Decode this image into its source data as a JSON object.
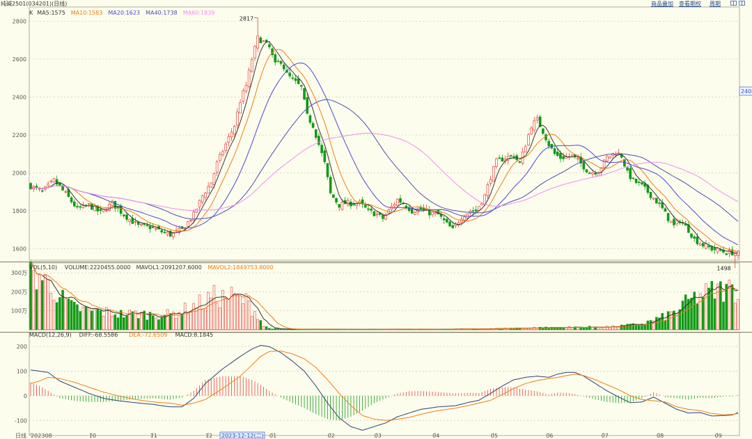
{
  "header": {
    "title": "纯碱2501(034201)(日线)",
    "buttons": [
      "商品叠加",
      "查看期权",
      "周期"
    ]
  },
  "colors": {
    "background": "#fdfdee",
    "up": "#e8413f",
    "down": "#129a16",
    "ma5": "#333333",
    "ma10": "#ee7d12",
    "ma20": "#4b47d6",
    "ma40": "#4a4fb0",
    "ma60": "#ef8cf2",
    "grid": "#cfcfb0",
    "axis": "#555555"
  },
  "price_legend": {
    "k": "K",
    "ma5": "MA5:1575",
    "ma10": "MA10:1583",
    "ma20": "MA20:1623",
    "ma40": "MA40:1738",
    "ma60": "MA60:1839"
  },
  "vol_legend": {
    "vol": "VOL(5,10)",
    "volume": "VOLUME:2220455.0000",
    "mavol1": "MAVOL1:2091207.6000",
    "mavol2": "MAVOL2:1849753.8000"
  },
  "macd_legend": {
    "macd": "MACD(12,26,9)",
    "diff": "DIFF:-68.5586",
    "dea": "DEA:-72.6509",
    "hist": "MACD:8.1845"
  },
  "right_label": "2400",
  "max_label": "2817",
  "min_label": "1498",
  "cursor_label": "2023-12-12(二)",
  "bottom_left_label": "日线",
  "chart_data": [
    {
      "type": "candlestick",
      "title": "纯碱2501(034201)(日线)",
      "ylim": [
        1540,
        2860
      ],
      "yticks": [
        1600,
        1800,
        2000,
        2200,
        2400,
        2600,
        2800
      ],
      "xticks": [
        "202308",
        "10",
        "11",
        "12",
        "01",
        "02",
        "03",
        "04",
        "05",
        "06",
        "07",
        "08",
        "09"
      ],
      "series_names": [
        "MA5",
        "MA10",
        "MA20",
        "MA40",
        "MA60"
      ],
      "anchors": {
        "price": [
          [
            0,
            1930
          ],
          [
            4,
            1900
          ],
          [
            8,
            1960
          ],
          [
            12,
            1890
          ],
          [
            16,
            1810
          ],
          [
            20,
            1830
          ],
          [
            24,
            1790
          ],
          [
            28,
            1840
          ],
          [
            32,
            1780
          ],
          [
            37,
            1720
          ],
          [
            41,
            1715
          ],
          [
            45,
            1690
          ],
          [
            48,
            1675
          ],
          [
            52,
            1700
          ],
          [
            56,
            1780
          ],
          [
            59,
            1880
          ],
          [
            62,
            1950
          ],
          [
            64,
            2050
          ],
          [
            67,
            2150
          ],
          [
            70,
            2250
          ],
          [
            72,
            2380
          ],
          [
            74,
            2460
          ],
          [
            76,
            2600
          ],
          [
            78,
            2710
          ],
          [
            80,
            2690
          ],
          [
            82,
            2660
          ],
          [
            84,
            2570
          ],
          [
            86,
            2590
          ],
          [
            88,
            2520
          ],
          [
            90,
            2490
          ],
          [
            93,
            2450
          ],
          [
            95,
            2300
          ],
          [
            97,
            2250
          ],
          [
            99,
            2150
          ],
          [
            101,
            2050
          ],
          [
            103,
            1890
          ],
          [
            106,
            1830
          ],
          [
            108,
            1840
          ],
          [
            111,
            1840
          ],
          [
            113,
            1840
          ],
          [
            116,
            1800
          ],
          [
            119,
            1780
          ],
          [
            121,
            1760
          ],
          [
            123,
            1800
          ],
          [
            126,
            1860
          ],
          [
            128,
            1840
          ],
          [
            131,
            1800
          ],
          [
            134,
            1810
          ],
          [
            137,
            1790
          ],
          [
            140,
            1780
          ],
          [
            143,
            1730
          ],
          [
            145,
            1700
          ],
          [
            148,
            1770
          ],
          [
            151,
            1800
          ],
          [
            153,
            1800
          ],
          [
            156,
            1880
          ],
          [
            158,
            1980
          ],
          [
            160,
            2060
          ],
          [
            163,
            2080
          ],
          [
            166,
            2090
          ],
          [
            168,
            2050
          ],
          [
            170,
            2150
          ],
          [
            172,
            2250
          ],
          [
            174,
            2280
          ],
          [
            176,
            2220
          ],
          [
            178,
            2150
          ],
          [
            180,
            2100
          ],
          [
            182,
            2080
          ],
          [
            186,
            2090
          ],
          [
            189,
            2050
          ],
          [
            192,
            2000
          ],
          [
            195,
            2010
          ],
          [
            198,
            2080
          ],
          [
            201,
            2110
          ],
          [
            203,
            2090
          ],
          [
            205,
            2000
          ],
          [
            207,
            1960
          ],
          [
            210,
            1930
          ],
          [
            212,
            1900
          ],
          [
            215,
            1850
          ],
          [
            217,
            1810
          ],
          [
            219,
            1760
          ],
          [
            221,
            1720
          ],
          [
            223,
            1750
          ],
          [
            226,
            1700
          ],
          [
            228,
            1650
          ],
          [
            231,
            1620
          ],
          [
            234,
            1600
          ],
          [
            237,
            1590
          ],
          [
            239,
            1580
          ],
          [
            241,
            1580
          ],
          [
            243,
            1575
          ]
        ]
      },
      "annotations": {
        "high": 2817,
        "low": 1498
      }
    },
    {
      "type": "bar",
      "title": "VOL(5,10)",
      "ylim": [
        0,
        330
      ],
      "yticks": [
        100,
        200,
        300
      ],
      "ytick_labels": [
        "100万",
        "200万",
        "300万"
      ],
      "series_names": [
        "VOLUME",
        "MAVOL1",
        "MAVOL2"
      ],
      "anchors": {
        "vol": [
          [
            0,
            290
          ],
          [
            3,
            290
          ],
          [
            5,
            250
          ],
          [
            8,
            220
          ],
          [
            11,
            160
          ],
          [
            14,
            120
          ],
          [
            17,
            110
          ],
          [
            20,
            100
          ],
          [
            24,
            95
          ],
          [
            28,
            90
          ],
          [
            32,
            80
          ],
          [
            36,
            85
          ],
          [
            40,
            80
          ],
          [
            44,
            80
          ],
          [
            48,
            80
          ],
          [
            52,
            100
          ],
          [
            55,
            120
          ],
          [
            58,
            140
          ],
          [
            60,
            140
          ],
          [
            62,
            180
          ],
          [
            64,
            170
          ],
          [
            66,
            170
          ],
          [
            68,
            180
          ],
          [
            70,
            170
          ],
          [
            72,
            160
          ],
          [
            74,
            150
          ],
          [
            76,
            110
          ],
          [
            78,
            80
          ],
          [
            80,
            20
          ],
          [
            82,
            8
          ],
          [
            84,
            5
          ],
          [
            86,
            3
          ],
          [
            140,
            3
          ],
          [
            160,
            6
          ],
          [
            170,
            10
          ],
          [
            180,
            12
          ],
          [
            190,
            14
          ],
          [
            200,
            16
          ],
          [
            210,
            30
          ],
          [
            214,
            50
          ],
          [
            218,
            70
          ],
          [
            222,
            100
          ],
          [
            226,
            150
          ],
          [
            230,
            180
          ],
          [
            234,
            200
          ],
          [
            238,
            210
          ],
          [
            243,
            215
          ]
        ]
      }
    },
    {
      "type": "line",
      "title": "MACD(12,26,9)",
      "ylim": [
        -150,
        240
      ],
      "yticks": [
        -100,
        0,
        100,
        200
      ],
      "series_names": [
        "DIFF",
        "DEA",
        "MACD"
      ],
      "anchors": {
        "diff": [
          [
            0,
            105
          ],
          [
            3,
            100
          ],
          [
            6,
            95
          ],
          [
            10,
            60
          ],
          [
            15,
            35
          ],
          [
            20,
            10
          ],
          [
            25,
            -10
          ],
          [
            30,
            -20
          ],
          [
            36,
            -28
          ],
          [
            42,
            -35
          ],
          [
            48,
            -45
          ],
          [
            52,
            -45
          ],
          [
            56,
            -10
          ],
          [
            60,
            50
          ],
          [
            66,
            110
          ],
          [
            72,
            160
          ],
          [
            76,
            190
          ],
          [
            79,
            205
          ],
          [
            82,
            200
          ],
          [
            86,
            175
          ],
          [
            90,
            140
          ],
          [
            94,
            100
          ],
          [
            98,
            40
          ],
          [
            102,
            -30
          ],
          [
            106,
            -90
          ],
          [
            110,
            -125
          ],
          [
            114,
            -140
          ],
          [
            118,
            -125
          ],
          [
            122,
            -110
          ],
          [
            126,
            -85
          ],
          [
            130,
            -70
          ],
          [
            134,
            -55
          ],
          [
            140,
            -45
          ],
          [
            146,
            -40
          ],
          [
            150,
            -28
          ],
          [
            154,
            -18
          ],
          [
            158,
            10
          ],
          [
            162,
            40
          ],
          [
            166,
            65
          ],
          [
            170,
            75
          ],
          [
            174,
            80
          ],
          [
            178,
            75
          ],
          [
            181,
            88
          ],
          [
            184,
            95
          ],
          [
            187,
            95
          ],
          [
            190,
            80
          ],
          [
            194,
            50
          ],
          [
            198,
            20
          ],
          [
            202,
            -5
          ],
          [
            206,
            -28
          ],
          [
            210,
            -25
          ],
          [
            214,
            -5
          ],
          [
            218,
            -30
          ],
          [
            222,
            -55
          ],
          [
            226,
            -70
          ],
          [
            230,
            -68
          ],
          [
            234,
            -82
          ],
          [
            238,
            -80
          ],
          [
            241,
            -78
          ],
          [
            243,
            -68
          ]
        ],
        "dea": [
          [
            0,
            50
          ],
          [
            3,
            60
          ],
          [
            6,
            75
          ],
          [
            10,
            70
          ],
          [
            15,
            55
          ],
          [
            20,
            35
          ],
          [
            25,
            15
          ],
          [
            30,
            0
          ],
          [
            36,
            -15
          ],
          [
            42,
            -25
          ],
          [
            48,
            -30
          ],
          [
            52,
            -38
          ],
          [
            56,
            -30
          ],
          [
            60,
            -15
          ],
          [
            66,
            30
          ],
          [
            72,
            80
          ],
          [
            76,
            125
          ],
          [
            79,
            160
          ],
          [
            82,
            180
          ],
          [
            86,
            182
          ],
          [
            90,
            170
          ],
          [
            94,
            150
          ],
          [
            98,
            115
          ],
          [
            102,
            65
          ],
          [
            106,
            10
          ],
          [
            110,
            -40
          ],
          [
            114,
            -80
          ],
          [
            118,
            -95
          ],
          [
            122,
            -100
          ],
          [
            126,
            -95
          ],
          [
            130,
            -88
          ],
          [
            134,
            -75
          ],
          [
            140,
            -60
          ],
          [
            146,
            -50
          ],
          [
            150,
            -40
          ],
          [
            154,
            -30
          ],
          [
            158,
            -18
          ],
          [
            162,
            5
          ],
          [
            166,
            30
          ],
          [
            170,
            50
          ],
          [
            174,
            62
          ],
          [
            178,
            70
          ],
          [
            181,
            75
          ],
          [
            184,
            82
          ],
          [
            187,
            88
          ],
          [
            190,
            82
          ],
          [
            194,
            65
          ],
          [
            198,
            45
          ],
          [
            202,
            25
          ],
          [
            206,
            0
          ],
          [
            210,
            -15
          ],
          [
            214,
            -20
          ],
          [
            218,
            -25
          ],
          [
            222,
            -45
          ],
          [
            226,
            -55
          ],
          [
            230,
            -60
          ],
          [
            234,
            -72
          ],
          [
            238,
            -77
          ],
          [
            241,
            -76
          ],
          [
            243,
            -72
          ]
        ]
      }
    }
  ]
}
